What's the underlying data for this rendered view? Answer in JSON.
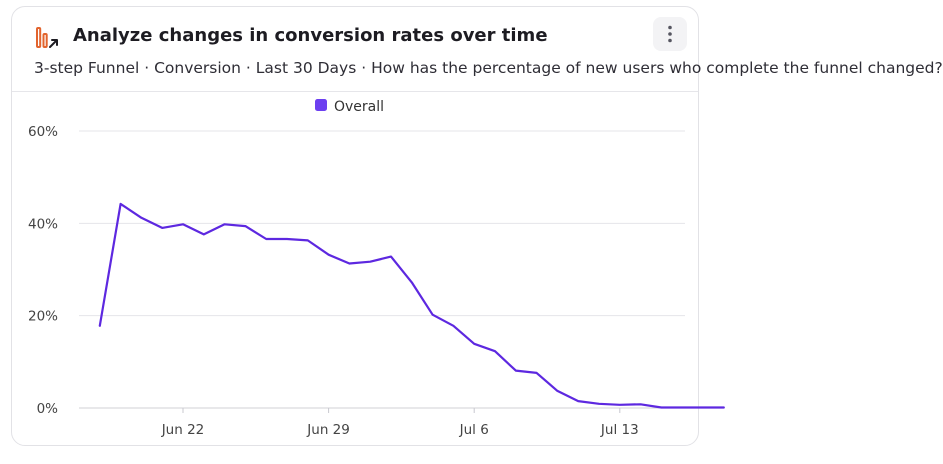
{
  "header": {
    "title": "Analyze changes in conversion rates over time",
    "subtitle": "3-step Funnel · Conversion · Last 30 Days · How has the percentage of new users who complete the funnel changed?",
    "icon": "funnel-trend-icon",
    "more_icon": "vertical-ellipsis-icon"
  },
  "colors": {
    "accent": "#5d28e0",
    "legend_swatch": "#6c3ff0",
    "icon_bars": "#e2642e",
    "gridline": "#e5e5ea"
  },
  "chart_data": {
    "type": "line",
    "ylim": [
      0,
      60
    ],
    "yticks": [
      0,
      20,
      40,
      60
    ],
    "ytick_labels": [
      "0%",
      "20%",
      "40%",
      "60%"
    ],
    "x_start": "2024-06-17",
    "xticks": [
      {
        "x": "2024-06-22",
        "label": "Jun 22"
      },
      {
        "x": "2024-06-29",
        "label": "Jun 29"
      },
      {
        "x": "2024-07-06",
        "label": "Jul 6"
      },
      {
        "x": "2024-07-13",
        "label": "Jul 13"
      }
    ],
    "legend_position": "top-center",
    "grid": true,
    "series": [
      {
        "name": "Overall",
        "x": [
          "2024-06-18",
          "2024-06-19",
          "2024-06-20",
          "2024-06-21",
          "2024-06-22",
          "2024-06-23",
          "2024-06-24",
          "2024-06-25",
          "2024-06-26",
          "2024-06-27",
          "2024-06-28",
          "2024-06-29",
          "2024-06-30",
          "2024-07-01",
          "2024-07-02",
          "2024-07-03",
          "2024-07-04",
          "2024-07-05",
          "2024-07-06",
          "2024-07-07",
          "2024-07-08",
          "2024-07-09",
          "2024-07-10",
          "2024-07-11",
          "2024-07-12",
          "2024-07-13",
          "2024-07-14",
          "2024-07-15",
          "2024-07-16",
          "2024-07-17",
          "2024-07-18"
        ],
        "values": [
          17.8,
          44.2,
          41.2,
          39.0,
          39.8,
          37.6,
          39.8,
          39.4,
          36.6,
          36.6,
          36.3,
          33.2,
          31.3,
          31.7,
          32.8,
          27.2,
          20.2,
          17.8,
          13.9,
          12.3,
          8.1,
          7.6,
          3.7,
          1.5,
          0.9,
          0.7,
          0.8,
          0.1,
          0.1,
          0.1,
          0.1
        ]
      }
    ]
  }
}
